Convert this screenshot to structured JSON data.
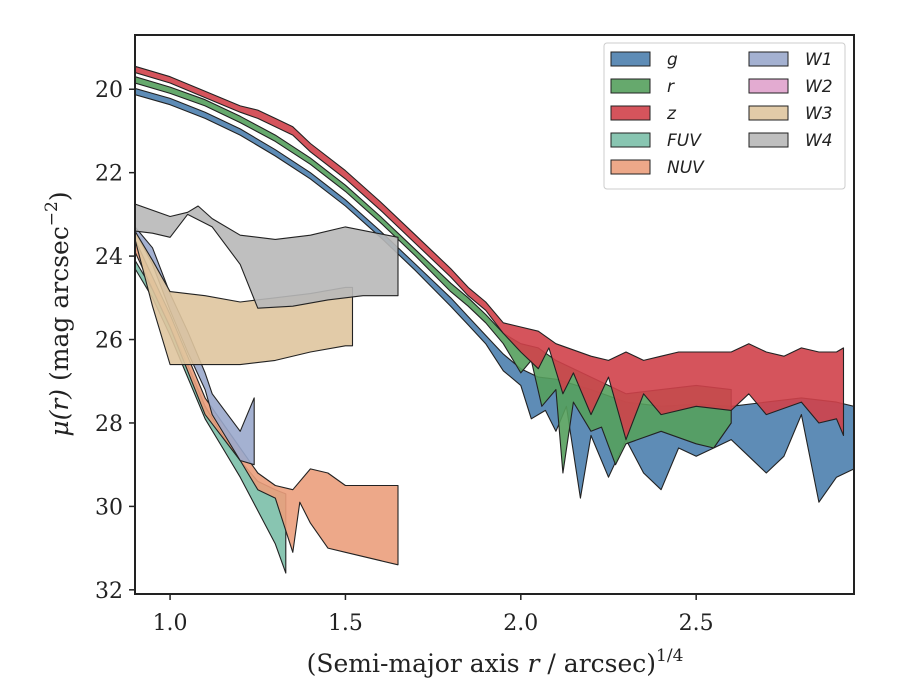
{
  "chart_data": {
    "type": "area",
    "xlabel_main": "(Semi-major axis ",
    "xlabel_var": "r",
    "xlabel_rest": " / arcsec)",
    "xlabel_sup": "1/4",
    "ylabel_var": "μ(r)",
    "ylabel_rest": " (mag arcsec",
    "ylabel_sup": "−2",
    "ylabel_close": ")",
    "xlim": [
      0.9,
      2.95
    ],
    "ylim": [
      32.1,
      18.7
    ],
    "x_ticks": [
      {
        "value": 1.0,
        "label": "1.0"
      },
      {
        "value": 1.5,
        "label": "1.5"
      },
      {
        "value": 2.0,
        "label": "2.0"
      },
      {
        "value": 2.5,
        "label": "2.5"
      }
    ],
    "y_ticks": [
      {
        "value": 20,
        "label": "20"
      },
      {
        "value": 22,
        "label": "22"
      },
      {
        "value": 24,
        "label": "24"
      },
      {
        "value": 26,
        "label": "26"
      },
      {
        "value": 28,
        "label": "28"
      },
      {
        "value": 30,
        "label": "30"
      },
      {
        "value": 32,
        "label": "32"
      }
    ],
    "legend_position": "top-right",
    "legend_columns": 2,
    "series": [
      {
        "name": "g",
        "color": "#4c7fae",
        "upper": [
          [
            0.9,
            19.98
          ],
          [
            1.0,
            20.22
          ],
          [
            1.1,
            20.55
          ],
          [
            1.2,
            20.95
          ],
          [
            1.3,
            21.45
          ],
          [
            1.4,
            22.0
          ],
          [
            1.5,
            22.65
          ],
          [
            1.6,
            23.4
          ],
          [
            1.7,
            24.2
          ],
          [
            1.8,
            25.0
          ],
          [
            1.85,
            25.45
          ],
          [
            1.9,
            25.9
          ],
          [
            1.95,
            26.35
          ],
          [
            2.0,
            26.7
          ],
          [
            2.05,
            26.9
          ],
          [
            2.1,
            26.95
          ],
          [
            2.2,
            27.2
          ],
          [
            2.3,
            27.5
          ],
          [
            2.4,
            27.6
          ],
          [
            2.5,
            27.55
          ],
          [
            2.6,
            27.6
          ],
          [
            2.7,
            27.5
          ],
          [
            2.8,
            27.4
          ],
          [
            2.9,
            27.5
          ],
          [
            2.95,
            27.6
          ]
        ],
        "lower": [
          [
            0.9,
            20.13
          ],
          [
            1.0,
            20.37
          ],
          [
            1.1,
            20.7
          ],
          [
            1.2,
            21.1
          ],
          [
            1.3,
            21.6
          ],
          [
            1.4,
            22.15
          ],
          [
            1.5,
            22.8
          ],
          [
            1.6,
            23.55
          ],
          [
            1.7,
            24.35
          ],
          [
            1.8,
            25.2
          ],
          [
            1.85,
            25.65
          ],
          [
            1.9,
            26.1
          ],
          [
            1.95,
            26.75
          ],
          [
            2.0,
            27.1
          ],
          [
            2.03,
            27.9
          ],
          [
            2.07,
            27.7
          ],
          [
            2.1,
            28.2
          ],
          [
            2.13,
            27.6
          ],
          [
            2.17,
            29.8
          ],
          [
            2.2,
            28.3
          ],
          [
            2.25,
            29.3
          ],
          [
            2.3,
            28.4
          ],
          [
            2.35,
            29.2
          ],
          [
            2.4,
            29.6
          ],
          [
            2.45,
            28.6
          ],
          [
            2.5,
            28.8
          ],
          [
            2.55,
            28.6
          ],
          [
            2.6,
            28.4
          ],
          [
            2.65,
            28.8
          ],
          [
            2.7,
            29.2
          ],
          [
            2.75,
            28.8
          ],
          [
            2.8,
            27.8
          ],
          [
            2.85,
            29.9
          ],
          [
            2.9,
            29.3
          ],
          [
            2.95,
            29.1
          ]
        ]
      },
      {
        "name": "r",
        "color": "#55a05d",
        "upper": [
          [
            0.9,
            19.7
          ],
          [
            1.0,
            19.95
          ],
          [
            1.1,
            20.25
          ],
          [
            1.2,
            20.65
          ],
          [
            1.3,
            21.1
          ],
          [
            1.4,
            21.65
          ],
          [
            1.5,
            22.3
          ],
          [
            1.6,
            23.05
          ],
          [
            1.7,
            23.85
          ],
          [
            1.8,
            24.65
          ],
          [
            1.85,
            25.0
          ],
          [
            1.9,
            25.4
          ],
          [
            1.95,
            25.85
          ],
          [
            2.0,
            26.1
          ],
          [
            2.05,
            26.2
          ],
          [
            2.1,
            26.5
          ],
          [
            2.2,
            26.9
          ],
          [
            2.3,
            27.3
          ],
          [
            2.4,
            27.2
          ],
          [
            2.5,
            27.1
          ],
          [
            2.6,
            27.2
          ]
        ],
        "lower": [
          [
            0.9,
            19.85
          ],
          [
            1.0,
            20.1
          ],
          [
            1.1,
            20.4
          ],
          [
            1.2,
            20.8
          ],
          [
            1.3,
            21.25
          ],
          [
            1.4,
            21.8
          ],
          [
            1.5,
            22.45
          ],
          [
            1.6,
            23.2
          ],
          [
            1.7,
            24.0
          ],
          [
            1.8,
            24.85
          ],
          [
            1.85,
            25.2
          ],
          [
            1.9,
            25.6
          ],
          [
            1.95,
            26.1
          ],
          [
            2.0,
            26.8
          ],
          [
            2.03,
            26.5
          ],
          [
            2.06,
            27.6
          ],
          [
            2.1,
            27.2
          ],
          [
            2.12,
            29.2
          ],
          [
            2.15,
            27.5
          ],
          [
            2.2,
            28.2
          ],
          [
            2.23,
            28.1
          ],
          [
            2.27,
            29.0
          ],
          [
            2.3,
            28.5
          ],
          [
            2.4,
            28.2
          ],
          [
            2.5,
            28.5
          ],
          [
            2.55,
            28.6
          ],
          [
            2.6,
            28.0
          ]
        ]
      },
      {
        "name": "z",
        "color": "#d0414a",
        "upper": [
          [
            0.9,
            19.45
          ],
          [
            1.0,
            19.7
          ],
          [
            1.1,
            20.05
          ],
          [
            1.2,
            20.4
          ],
          [
            1.25,
            20.5
          ],
          [
            1.3,
            20.7
          ],
          [
            1.35,
            20.9
          ],
          [
            1.4,
            21.3
          ],
          [
            1.5,
            21.95
          ],
          [
            1.6,
            22.7
          ],
          [
            1.7,
            23.5
          ],
          [
            1.8,
            24.3
          ],
          [
            1.85,
            24.75
          ],
          [
            1.9,
            25.1
          ],
          [
            1.95,
            25.6
          ],
          [
            2.0,
            25.7
          ],
          [
            2.05,
            25.8
          ],
          [
            2.1,
            26.1
          ],
          [
            2.2,
            26.4
          ],
          [
            2.25,
            26.5
          ],
          [
            2.3,
            26.3
          ],
          [
            2.35,
            26.5
          ],
          [
            2.4,
            26.4
          ],
          [
            2.45,
            26.3
          ],
          [
            2.5,
            26.3
          ],
          [
            2.6,
            26.3
          ],
          [
            2.65,
            26.1
          ],
          [
            2.7,
            26.3
          ],
          [
            2.75,
            26.4
          ],
          [
            2.8,
            26.2
          ],
          [
            2.85,
            26.3
          ],
          [
            2.9,
            26.3
          ],
          [
            2.92,
            26.2
          ]
        ],
        "lower": [
          [
            0.9,
            19.6
          ],
          [
            1.0,
            19.85
          ],
          [
            1.1,
            20.2
          ],
          [
            1.2,
            20.55
          ],
          [
            1.25,
            20.7
          ],
          [
            1.3,
            20.9
          ],
          [
            1.35,
            21.1
          ],
          [
            1.4,
            21.5
          ],
          [
            1.5,
            22.15
          ],
          [
            1.6,
            22.9
          ],
          [
            1.7,
            23.7
          ],
          [
            1.8,
            24.5
          ],
          [
            1.85,
            24.95
          ],
          [
            1.9,
            25.3
          ],
          [
            1.95,
            25.85
          ],
          [
            2.0,
            26.3
          ],
          [
            2.05,
            26.7
          ],
          [
            2.08,
            26.2
          ],
          [
            2.12,
            27.3
          ],
          [
            2.15,
            26.8
          ],
          [
            2.2,
            27.8
          ],
          [
            2.25,
            26.9
          ],
          [
            2.3,
            28.4
          ],
          [
            2.35,
            27.3
          ],
          [
            2.4,
            27.8
          ],
          [
            2.5,
            27.6
          ],
          [
            2.6,
            27.7
          ],
          [
            2.65,
            27.3
          ],
          [
            2.7,
            27.8
          ],
          [
            2.8,
            27.5
          ],
          [
            2.85,
            28.0
          ],
          [
            2.9,
            27.9
          ],
          [
            2.92,
            28.3
          ]
        ]
      },
      {
        "name": "FUV",
        "color": "#7bbfa9",
        "upper": [
          [
            0.9,
            24.1
          ],
          [
            0.95,
            24.8
          ],
          [
            1.0,
            25.7
          ],
          [
            1.05,
            26.6
          ],
          [
            1.1,
            27.6
          ],
          [
            1.15,
            28.3
          ],
          [
            1.2,
            28.9
          ],
          [
            1.25,
            29.4
          ],
          [
            1.3,
            29.6
          ],
          [
            1.33,
            29.7
          ]
        ],
        "lower": [
          [
            0.9,
            24.3
          ],
          [
            0.95,
            25.0
          ],
          [
            1.0,
            25.9
          ],
          [
            1.05,
            26.9
          ],
          [
            1.1,
            27.9
          ],
          [
            1.15,
            28.6
          ],
          [
            1.2,
            29.3
          ],
          [
            1.25,
            30.1
          ],
          [
            1.3,
            30.9
          ],
          [
            1.33,
            31.6
          ]
        ]
      },
      {
        "name": "NUV",
        "color": "#eb9f7c",
        "upper": [
          [
            0.9,
            23.6
          ],
          [
            1.0,
            25.4
          ],
          [
            1.1,
            27.4
          ],
          [
            1.2,
            28.6
          ],
          [
            1.25,
            29.2
          ],
          [
            1.3,
            29.5
          ],
          [
            1.35,
            29.6
          ],
          [
            1.4,
            29.1
          ],
          [
            1.45,
            29.2
          ],
          [
            1.5,
            29.5
          ],
          [
            1.65,
            29.5
          ]
        ],
        "lower": [
          [
            0.9,
            23.9
          ],
          [
            1.0,
            25.7
          ],
          [
            1.1,
            27.8
          ],
          [
            1.2,
            28.9
          ],
          [
            1.25,
            29.6
          ],
          [
            1.3,
            29.8
          ],
          [
            1.35,
            31.1
          ],
          [
            1.37,
            29.9
          ],
          [
            1.4,
            30.4
          ],
          [
            1.45,
            31.0
          ],
          [
            1.5,
            31.1
          ],
          [
            1.65,
            31.4
          ]
        ]
      },
      {
        "name": "W1",
        "color": "#9aa8cc",
        "upper": [
          [
            0.9,
            23.3
          ],
          [
            0.95,
            23.8
          ],
          [
            1.0,
            24.9
          ],
          [
            1.05,
            25.8
          ],
          [
            1.1,
            26.8
          ],
          [
            1.12,
            27.3
          ],
          [
            1.2,
            28.2
          ],
          [
            1.24,
            27.4
          ]
        ],
        "lower": [
          [
            0.9,
            23.4
          ],
          [
            0.95,
            24.2
          ],
          [
            1.0,
            25.3
          ],
          [
            1.05,
            26.3
          ],
          [
            1.1,
            27.2
          ],
          [
            1.12,
            27.8
          ],
          [
            1.2,
            28.9
          ],
          [
            1.24,
            29.0
          ]
        ]
      },
      {
        "name": "W2",
        "color": "#e0a2cc",
        "upper": [],
        "lower": []
      },
      {
        "name": "W3",
        "color": "#dfc59e",
        "upper": [
          [
            0.9,
            23.4
          ],
          [
            0.95,
            24.1
          ],
          [
            1.0,
            24.85
          ],
          [
            1.1,
            24.95
          ],
          [
            1.2,
            25.1
          ],
          [
            1.3,
            25.0
          ],
          [
            1.4,
            24.9
          ],
          [
            1.5,
            24.75
          ],
          [
            1.52,
            24.75
          ]
        ],
        "lower": [
          [
            0.9,
            23.6
          ],
          [
            0.95,
            25.2
          ],
          [
            1.0,
            26.6
          ],
          [
            1.1,
            26.6
          ],
          [
            1.2,
            26.6
          ],
          [
            1.3,
            26.5
          ],
          [
            1.4,
            26.3
          ],
          [
            1.5,
            26.15
          ],
          [
            1.52,
            26.15
          ]
        ]
      },
      {
        "name": "W4",
        "color": "#b8b8b8",
        "upper": [
          [
            0.9,
            22.75
          ],
          [
            1.0,
            23.05
          ],
          [
            1.05,
            22.95
          ],
          [
            1.08,
            22.8
          ],
          [
            1.12,
            23.1
          ],
          [
            1.2,
            23.5
          ],
          [
            1.3,
            23.6
          ],
          [
            1.4,
            23.5
          ],
          [
            1.5,
            23.3
          ],
          [
            1.65,
            23.55
          ]
        ],
        "lower": [
          [
            0.9,
            23.4
          ],
          [
            0.95,
            23.45
          ],
          [
            1.0,
            23.55
          ],
          [
            1.05,
            23.0
          ],
          [
            1.12,
            23.3
          ],
          [
            1.2,
            24.2
          ],
          [
            1.25,
            25.25
          ],
          [
            1.35,
            25.2
          ],
          [
            1.45,
            25.05
          ],
          [
            1.5,
            25.0
          ],
          [
            1.55,
            24.95
          ],
          [
            1.65,
            24.95
          ]
        ]
      }
    ]
  }
}
